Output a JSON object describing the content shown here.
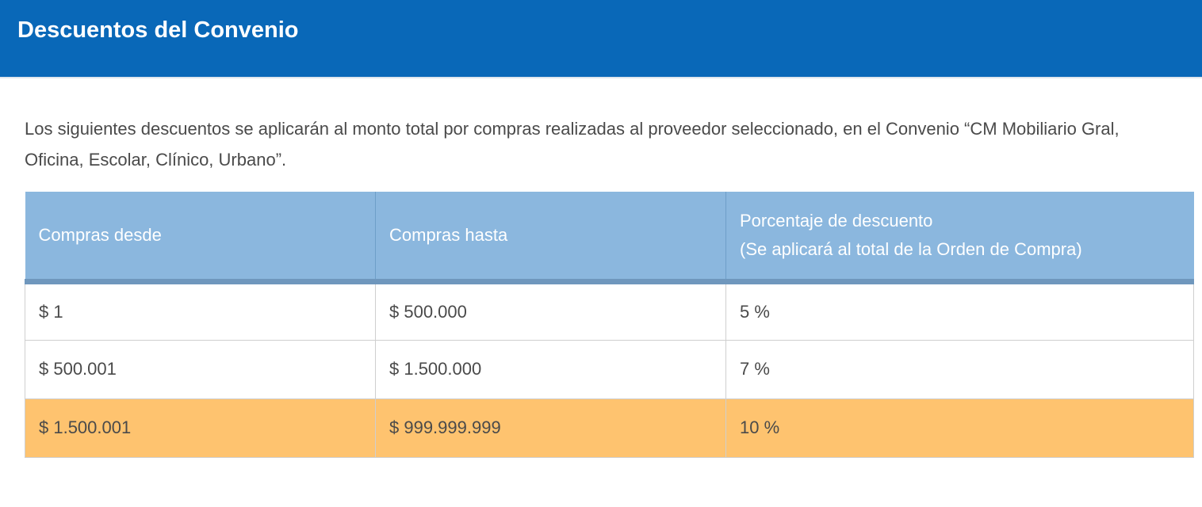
{
  "header": {
    "title": "Descuentos del Convenio"
  },
  "intro": {
    "text": "Los siguientes descuentos se aplicarán al monto total por compras realizadas al proveedor seleccionado, en el Convenio “CM Mobiliario Gral, Oficina, Escolar, Clínico, Urbano”."
  },
  "table": {
    "columns": [
      {
        "label": "Compras desde"
      },
      {
        "label": "Compras hasta"
      },
      {
        "label": "Porcentaje de descuento",
        "sublabel": "(Se aplicará al total de la Orden de Compra)"
      }
    ],
    "rows": [
      {
        "desde": "$ 1",
        "hasta": "$ 500.000",
        "porcentaje": "5 %"
      },
      {
        "desde": "$ 500.001",
        "hasta": "$ 1.500.000",
        "porcentaje": "7 %"
      },
      {
        "desde": "$ 1.500.001",
        "hasta": "$ 999.999.999",
        "porcentaje": "10 %",
        "highlighted": true
      }
    ]
  },
  "colors": {
    "header_bg": "#0968b8",
    "table_header_bg": "#8bb7de",
    "highlight_row_bg": "#fec36f",
    "text": "#4a4a4a"
  }
}
